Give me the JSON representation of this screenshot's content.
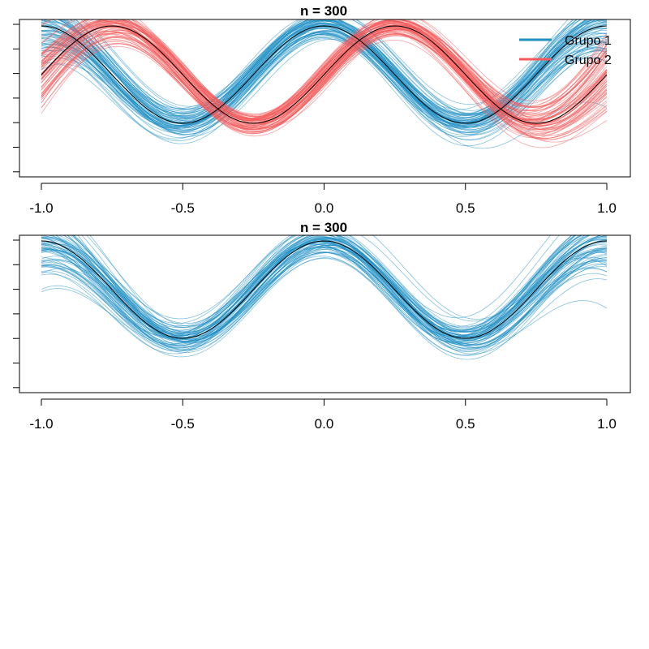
{
  "chart_data": [
    {
      "type": "line",
      "title": "n = 300",
      "xlim": [
        -1.0,
        1.0
      ],
      "ylim": [
        -2.6,
        2.2
      ],
      "x_ticks": [
        -1.0,
        -0.5,
        0.0,
        0.5,
        1.0
      ],
      "x_tick_labels": [
        "-1.0",
        "-0.5",
        "0.0",
        "0.5",
        "1.0"
      ],
      "y_ticks": [
        -2,
        -1.5,
        -1,
        -0.5,
        0,
        0.5,
        1,
        1.5
      ],
      "y_tick_labels": [
        "",
        "",
        "",
        "",
        "",
        "",
        "",
        ""
      ],
      "legend": {
        "position": "top-right"
      },
      "series": [
        {
          "name": "Grupo 1",
          "color": "#1f8fc4",
          "mean_curve": "cos(2*pi*x)",
          "band_half_width": 0.24,
          "curve_count": 300
        },
        {
          "name": "Grupo 2",
          "color": "#f45a5a",
          "mean_curve": "sin(2*pi*x)",
          "band_half_width": 0.16,
          "curve_count": 300
        }
      ],
      "mean_line_color": "#000000"
    },
    {
      "type": "line",
      "title": "n = 300",
      "xlim": [
        -1.0,
        1.0
      ],
      "ylim": [
        -2.6,
        2.2
      ],
      "x_ticks": [
        -1.0,
        -0.5,
        0.0,
        0.5,
        1.0
      ],
      "x_tick_labels": [
        "-1.0",
        "-0.5",
        "0.0",
        "0.5",
        "1.0"
      ],
      "y_ticks": [
        -2,
        -1.5,
        -1,
        -0.5,
        0,
        0.5,
        1,
        1.5
      ],
      "y_tick_labels": [
        "",
        "",
        "",
        "",
        "",
        "",
        "",
        ""
      ],
      "series": [
        {
          "name": "Grupo 1",
          "color": "#1f8fc4",
          "mean_curve": "cos(2*pi*x)",
          "band_half_width": 0.24,
          "curve_count": 300
        }
      ],
      "mean_line_color": "#000000"
    }
  ]
}
